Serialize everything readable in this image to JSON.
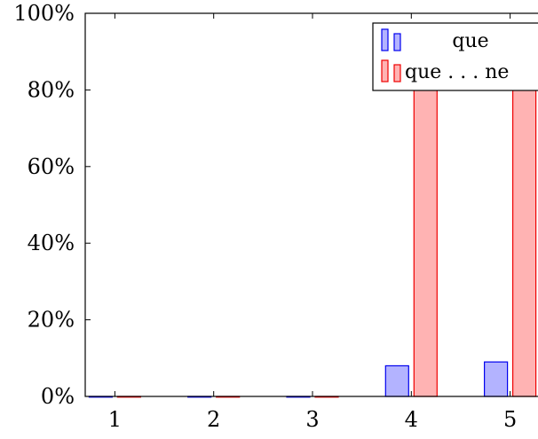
{
  "chart_data": {
    "type": "bar",
    "categories": [
      "1",
      "2",
      "3",
      "4",
      "5"
    ],
    "series": [
      {
        "name": "que",
        "values": [
          0,
          0,
          0,
          8,
          9
        ],
        "color": "#0000ee",
        "fill": "#b3b3ff"
      },
      {
        "name": "que . . . ne",
        "values": [
          0,
          0,
          0,
          88,
          91
        ],
        "color": "#ee0000",
        "fill": "#ffb3b3"
      }
    ],
    "y_tick_labels": [
      "0%",
      "20%",
      "40%",
      "60%",
      "80%",
      "100%"
    ],
    "y_ticks": [
      0,
      20,
      40,
      60,
      80,
      100
    ],
    "ylim": [
      0,
      100
    ],
    "x_range": [
      0.7,
      5.3
    ],
    "legend_position": "top-right",
    "grid": false
  }
}
